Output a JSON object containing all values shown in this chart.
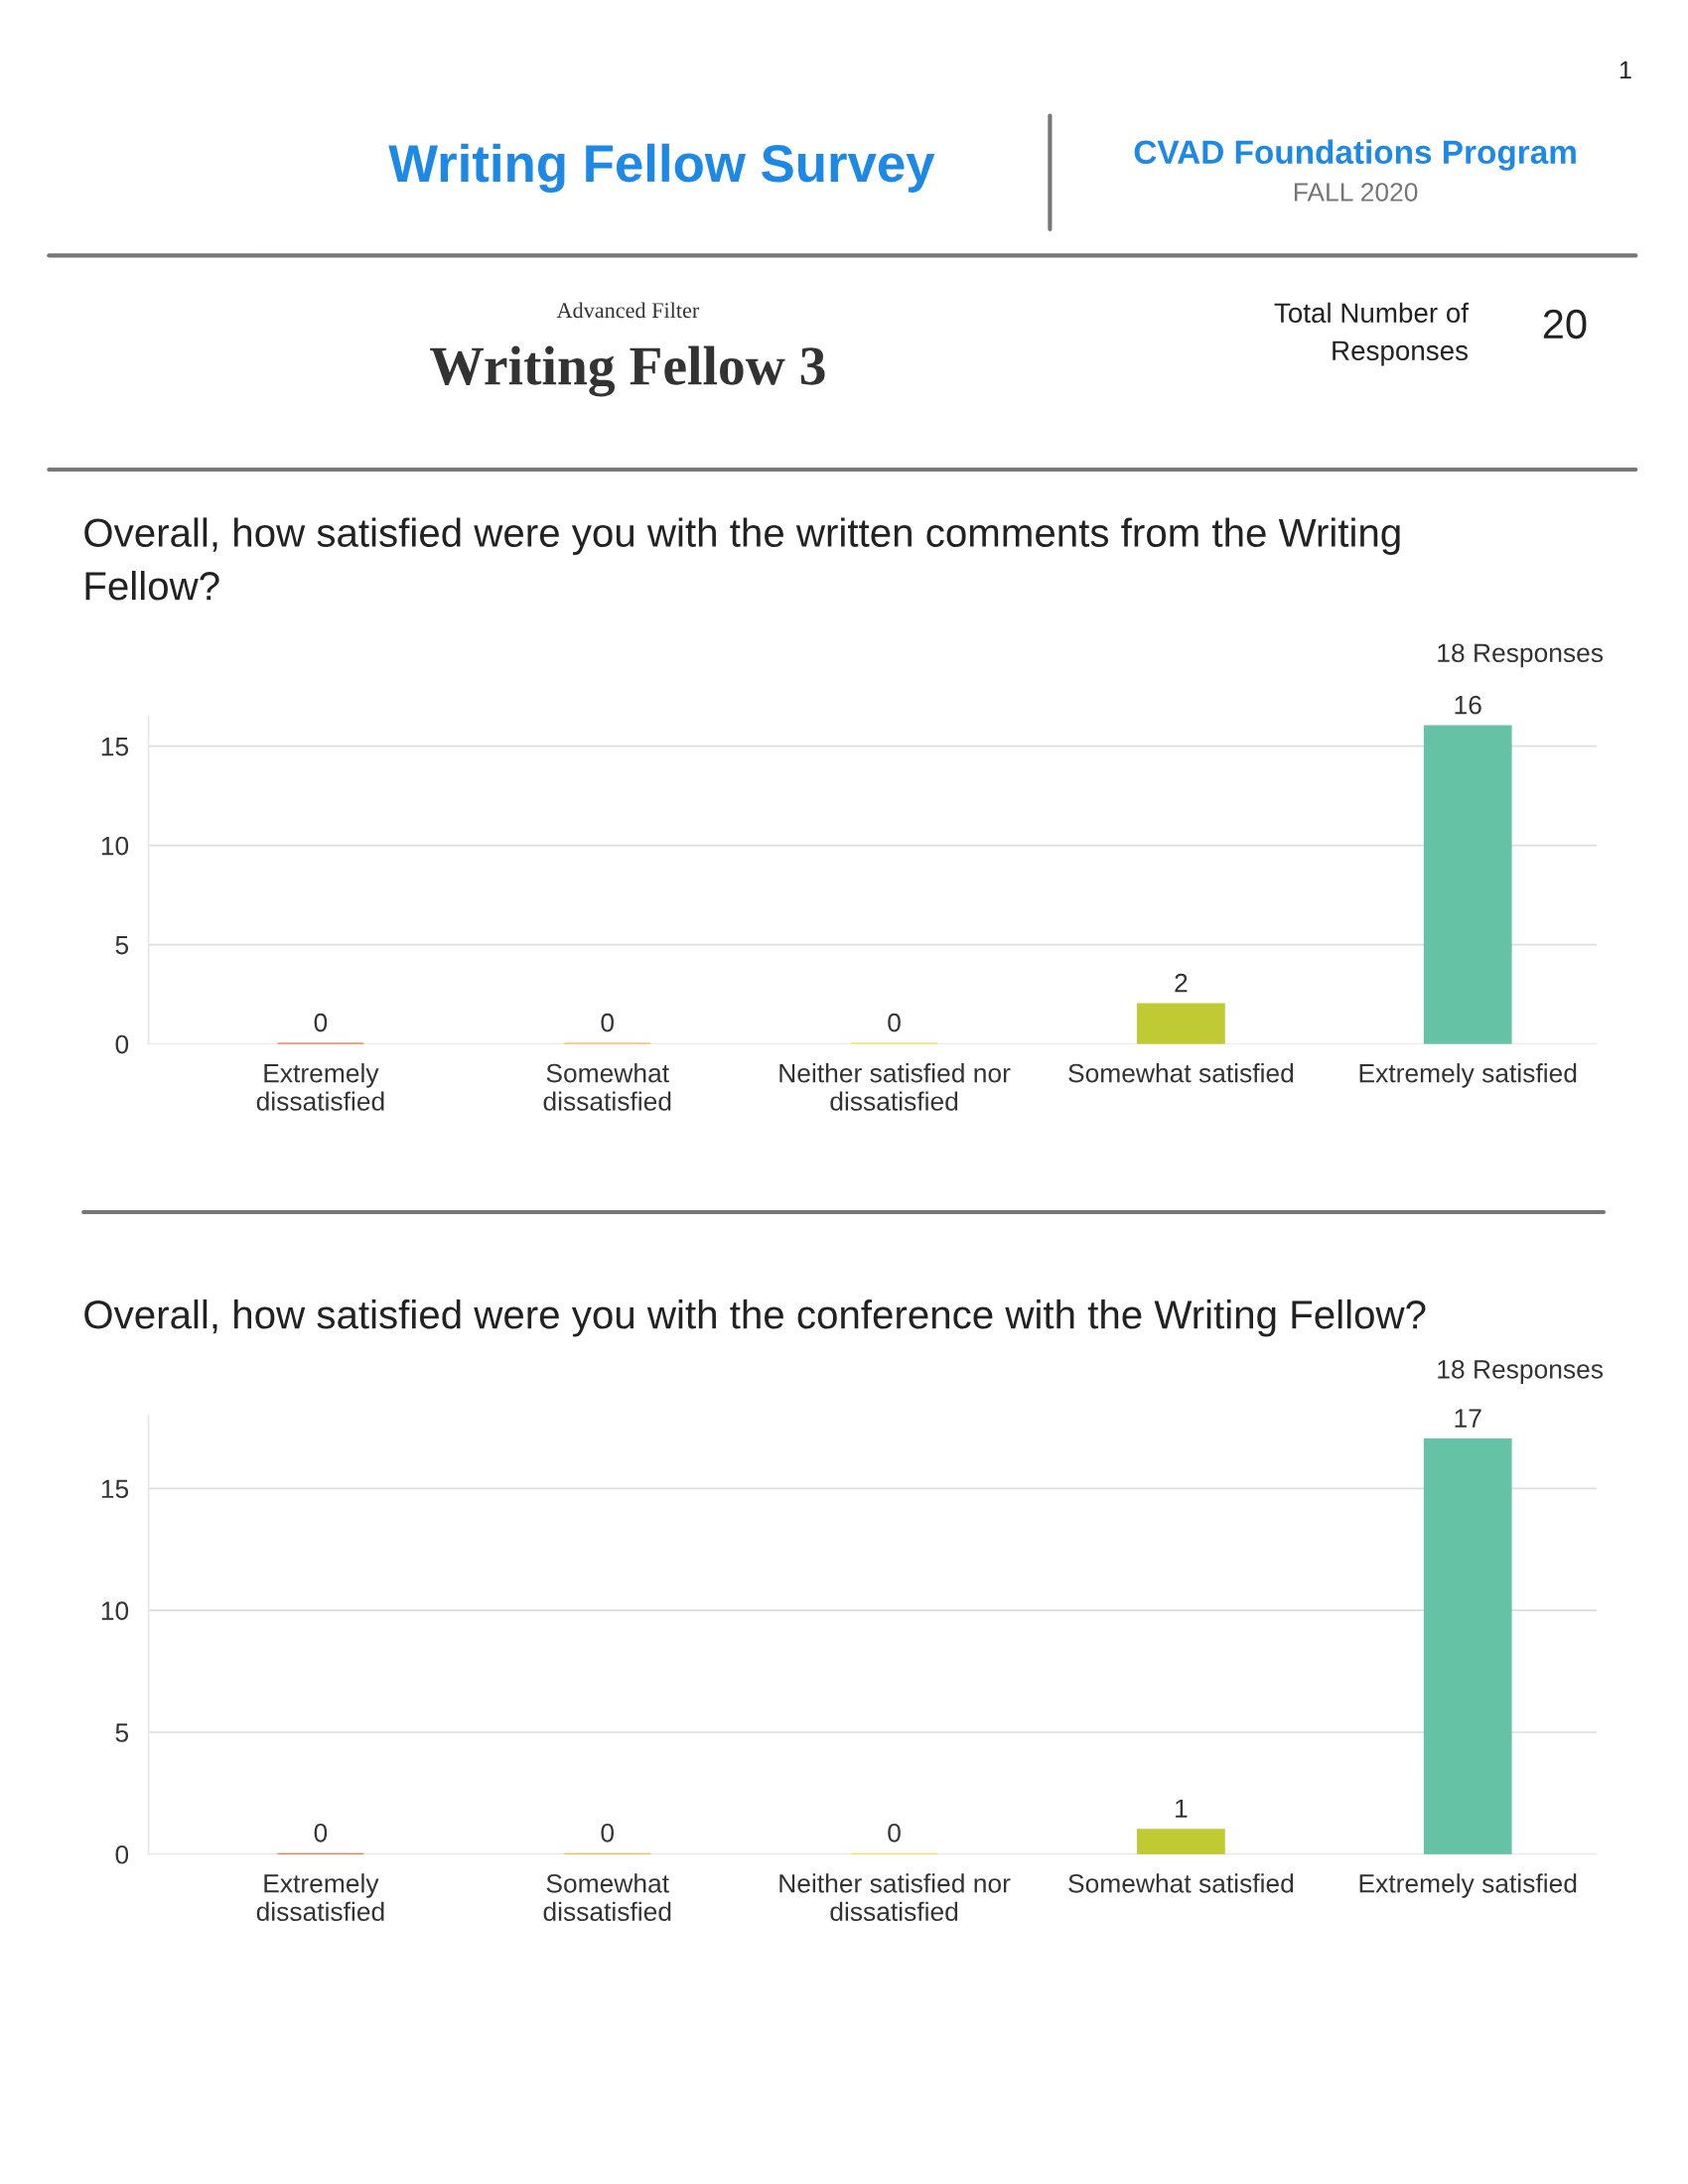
{
  "chart_data": [
    {
      "type": "bar",
      "title": "Overall, how satisfied were you with the written comments from the Writing Fellow?",
      "categories": [
        "Extremely dissatisfied",
        "Somewhat dissatisfied",
        "Neither satisfied nor dissatisfied",
        "Somewhat satisfied",
        "Extremely satisfied"
      ],
      "values": [
        0,
        0,
        0,
        2,
        16
      ],
      "colors": [
        "#f4511e",
        "#ffa726",
        "#fdd835",
        "#c0ca33",
        "#66c2a5"
      ],
      "ylim": [
        0,
        16.5
      ],
      "yticks": [
        0,
        5,
        10,
        15
      ],
      "grid": "y",
      "data_labels": true,
      "annotations": [
        "1",
        "Writing Fellow Survey",
        "CVAD Foundations Program",
        "FALL 2020",
        "Advanced Filter",
        "Writing Fellow 3",
        "Total Number of\nResponses",
        "20",
        "18 Responses"
      ]
    },
    {
      "type": "bar",
      "title": "Overall, how satisfied were you with the conference with the Writing Fellow?",
      "categories": [
        "Extremely dissatisfied",
        "Somewhat dissatisfied",
        "Neither satisfied nor dissatisfied",
        "Somewhat satisfied",
        "Extremely satisfied"
      ],
      "values": [
        0,
        0,
        0,
        1,
        17
      ],
      "colors": [
        "#f4511e",
        "#ffa726",
        "#fdd835",
        "#c0ca33",
        "#66c2a5"
      ],
      "ylim": [
        0,
        18
      ],
      "yticks": [
        0,
        5,
        10,
        15
      ],
      "grid": "y",
      "data_labels": true,
      "annotations": [
        "18 Responses"
      ]
    }
  ]
}
